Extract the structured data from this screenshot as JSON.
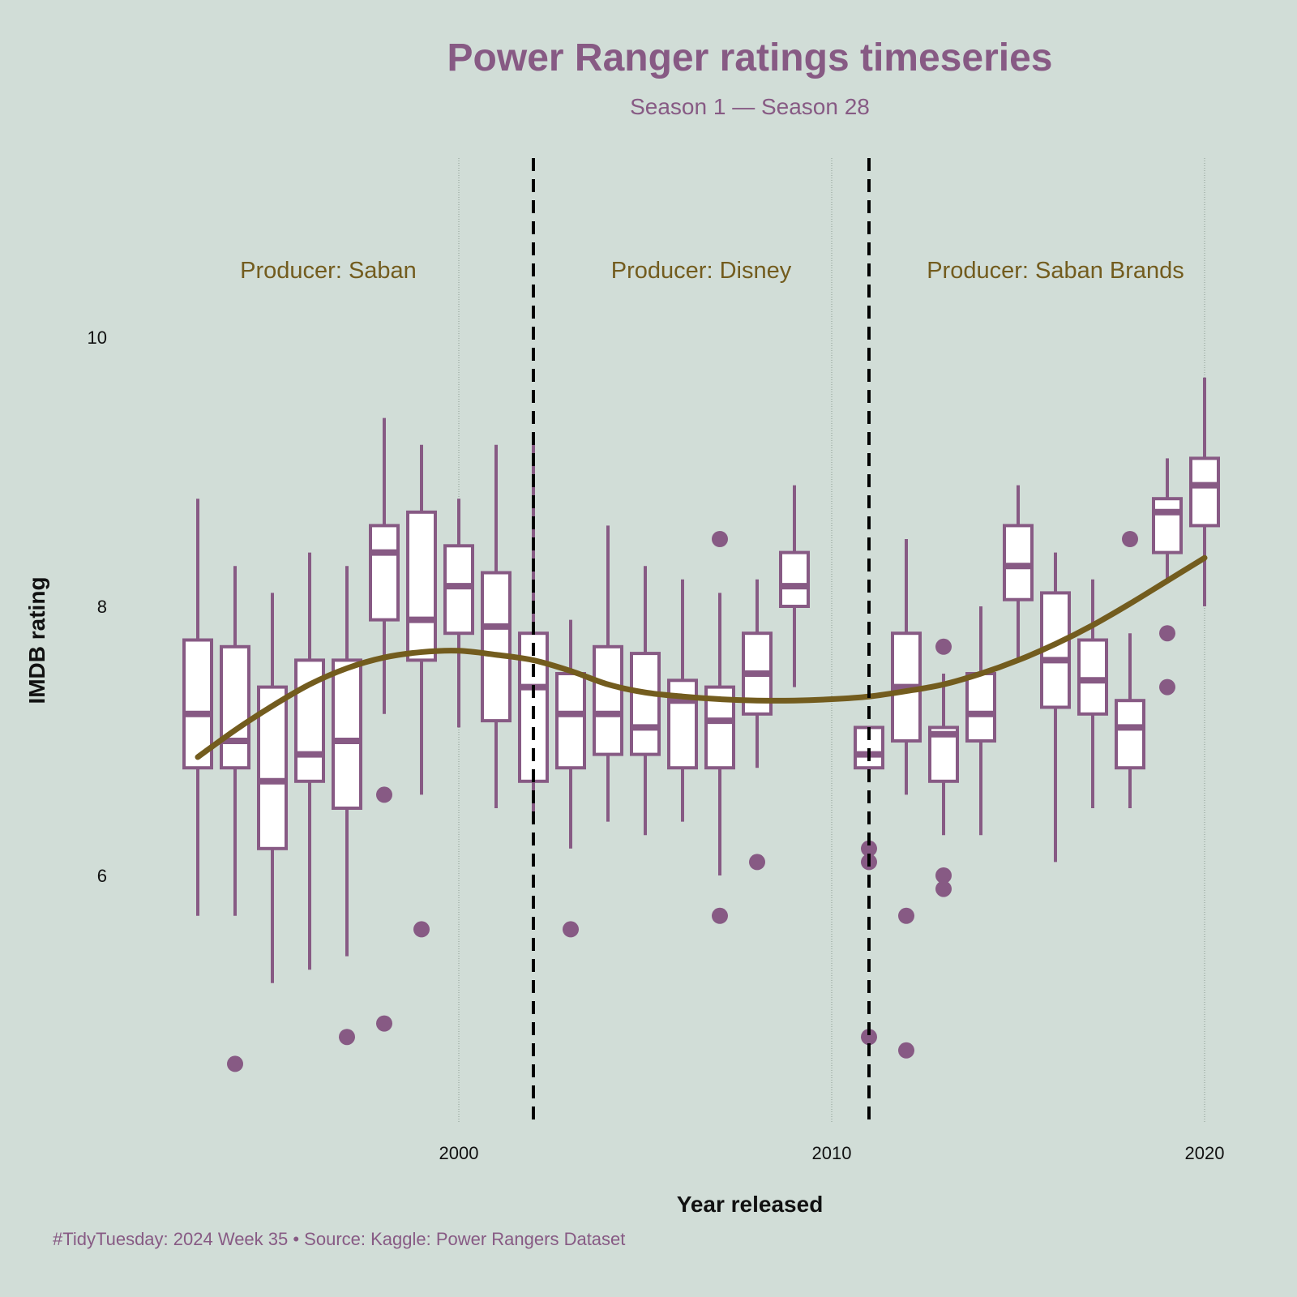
{
  "title": "Power Ranger ratings timeseries",
  "subtitle": "Season 1 — Season 28",
  "caption": "#TidyTuesday: 2024  Week 35 • Source: Kaggle: Power Rangers Dataset",
  "colors": {
    "background": "#d1ddd7",
    "box_stroke": "#875a84",
    "box_fill": "#ffffff",
    "smooth_line": "#735c1e",
    "annotation": "#735c1e",
    "divider": "#000000"
  },
  "chart_data": {
    "type": "box",
    "xlabel": "Year released",
    "ylabel": "IMDB rating",
    "x_ticks": [
      2000,
      2010,
      2020
    ],
    "y_ticks": [
      6,
      8,
      10
    ],
    "xlim": [
      1992.6,
      2021.0
    ],
    "ylim": [
      4.2,
      11.2
    ],
    "grid": "vertical dotted at x ticks",
    "dividers": [
      2002,
      2011
    ],
    "annotations": [
      {
        "text": "Producer: Saban",
        "x": 1996.5,
        "y": 10.5
      },
      {
        "text": "Producer: Disney",
        "x": 2006.5,
        "y": 10.5
      },
      {
        "text": "Producer: Saban Brands",
        "x": 2016.0,
        "y": 10.5
      }
    ],
    "boxes": [
      {
        "x": 1993,
        "lower": 5.7,
        "q1": 6.8,
        "median": 7.2,
        "q3": 7.75,
        "upper": 8.8,
        "outliers": []
      },
      {
        "x": 1994,
        "lower": 5.7,
        "q1": 6.8,
        "median": 7.0,
        "q3": 7.7,
        "upper": 8.3,
        "outliers": [
          4.6
        ]
      },
      {
        "x": 1995,
        "lower": 5.2,
        "q1": 6.2,
        "median": 6.7,
        "q3": 7.4,
        "upper": 8.1,
        "outliers": []
      },
      {
        "x": 1996,
        "lower": 5.3,
        "q1": 6.7,
        "median": 6.9,
        "q3": 7.6,
        "upper": 8.4,
        "outliers": []
      },
      {
        "x": 1997,
        "lower": 5.4,
        "q1": 6.5,
        "median": 7.0,
        "q3": 7.6,
        "upper": 8.3,
        "outliers": [
          4.8
        ]
      },
      {
        "x": 1998,
        "lower": 7.2,
        "q1": 7.9,
        "median": 8.4,
        "q3": 8.6,
        "upper": 9.4,
        "outliers": [
          6.6,
          4.9
        ]
      },
      {
        "x": 1999,
        "lower": 6.6,
        "q1": 7.6,
        "median": 7.9,
        "q3": 8.7,
        "upper": 9.2,
        "outliers": [
          5.6
        ]
      },
      {
        "x": 2000,
        "lower": 7.1,
        "q1": 7.8,
        "median": 8.15,
        "q3": 8.45,
        "upper": 8.8,
        "outliers": []
      },
      {
        "x": 2001,
        "lower": 6.5,
        "q1": 7.15,
        "median": 7.85,
        "q3": 8.25,
        "upper": 9.2,
        "outliers": []
      },
      {
        "x": 2002,
        "lower": 6.4,
        "q1": 6.7,
        "median": 7.4,
        "q3": 7.8,
        "upper": 9.2,
        "outliers": []
      },
      {
        "x": 2003,
        "lower": 6.2,
        "q1": 6.8,
        "median": 7.2,
        "q3": 7.5,
        "upper": 7.9,
        "outliers": [
          5.6
        ]
      },
      {
        "x": 2004,
        "lower": 6.4,
        "q1": 6.9,
        "median": 7.2,
        "q3": 7.7,
        "upper": 8.6,
        "outliers": []
      },
      {
        "x": 2005,
        "lower": 6.3,
        "q1": 6.9,
        "median": 7.1,
        "q3": 7.65,
        "upper": 8.3,
        "outliers": []
      },
      {
        "x": 2006,
        "lower": 6.4,
        "q1": 6.8,
        "median": 7.3,
        "q3": 7.45,
        "upper": 8.2,
        "outliers": []
      },
      {
        "x": 2007,
        "lower": 6.0,
        "q1": 6.8,
        "median": 7.15,
        "q3": 7.4,
        "upper": 8.1,
        "outliers": [
          8.5,
          5.7
        ]
      },
      {
        "x": 2008,
        "lower": 6.8,
        "q1": 7.2,
        "median": 7.5,
        "q3": 7.8,
        "upper": 8.2,
        "outliers": [
          6.1
        ]
      },
      {
        "x": 2009,
        "lower": 7.4,
        "q1": 8.0,
        "median": 8.15,
        "q3": 8.4,
        "upper": 8.9,
        "outliers": []
      },
      {
        "x": 2011,
        "lower": 6.8,
        "q1": 6.8,
        "median": 6.9,
        "q3": 7.1,
        "upper": 7.1,
        "outliers": [
          6.2,
          6.1,
          4.8
        ]
      },
      {
        "x": 2012,
        "lower": 6.6,
        "q1": 7.0,
        "median": 7.4,
        "q3": 7.8,
        "upper": 8.5,
        "outliers": [
          5.7,
          4.7
        ]
      },
      {
        "x": 2013,
        "lower": 6.3,
        "q1": 6.7,
        "median": 7.05,
        "q3": 7.1,
        "upper": 7.5,
        "outliers": [
          7.7,
          6.0,
          5.9
        ]
      },
      {
        "x": 2014,
        "lower": 6.3,
        "q1": 7.0,
        "median": 7.2,
        "q3": 7.5,
        "upper": 8.0,
        "outliers": []
      },
      {
        "x": 2015,
        "lower": 7.6,
        "q1": 8.05,
        "median": 8.3,
        "q3": 8.6,
        "upper": 8.9,
        "outliers": []
      },
      {
        "x": 2016,
        "lower": 6.1,
        "q1": 7.25,
        "median": 7.6,
        "q3": 8.1,
        "upper": 8.4,
        "outliers": []
      },
      {
        "x": 2017,
        "lower": 6.5,
        "q1": 7.2,
        "median": 7.45,
        "q3": 7.75,
        "upper": 8.2,
        "outliers": []
      },
      {
        "x": 2018,
        "lower": 6.5,
        "q1": 6.8,
        "median": 7.1,
        "q3": 7.3,
        "upper": 7.8,
        "outliers": [
          8.5
        ]
      },
      {
        "x": 2019,
        "lower": 8.2,
        "q1": 8.4,
        "median": 8.7,
        "q3": 8.8,
        "upper": 9.1,
        "outliers": [
          7.8,
          7.4
        ]
      },
      {
        "x": 2020,
        "lower": 8.0,
        "q1": 8.6,
        "median": 8.9,
        "q3": 9.1,
        "upper": 9.7,
        "outliers": []
      }
    ],
    "smooth": {
      "x": [
        1993,
        1994,
        1995,
        1996,
        1997,
        1998,
        1999,
        2000,
        2001,
        2002,
        2003,
        2004,
        2005,
        2006,
        2007,
        2008,
        2009,
        2010,
        2011,
        2012,
        2013,
        2014,
        2015,
        2016,
        2017,
        2018,
        2019,
        2020
      ],
      "y": [
        6.88,
        7.08,
        7.26,
        7.42,
        7.54,
        7.62,
        7.66,
        7.67,
        7.64,
        7.6,
        7.52,
        7.42,
        7.36,
        7.33,
        7.31,
        7.3,
        7.3,
        7.31,
        7.33,
        7.37,
        7.42,
        7.5,
        7.6,
        7.72,
        7.86,
        8.02,
        8.19,
        8.36
      ]
    }
  }
}
